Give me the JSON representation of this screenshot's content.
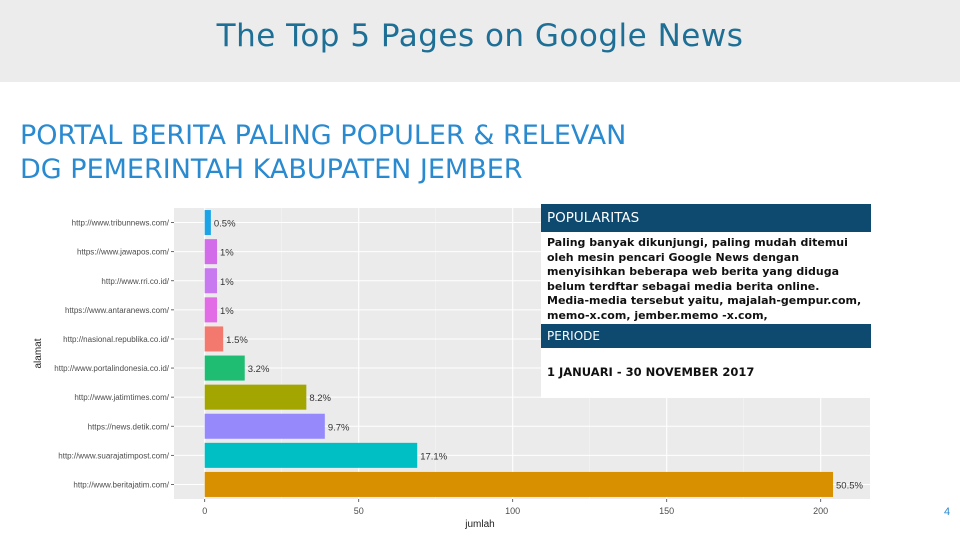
{
  "slide": {
    "title": "The Top 5 Pages on Google News",
    "heading_line1": "PORTAL BERITA PALING POPULER & RELEVAN",
    "heading_line2": "DG PEMERINTAH KABUPATEN JEMBER",
    "page_number": "4"
  },
  "popularitas": {
    "header": "POPULARITAS",
    "body": "Paling banyak dikunjungi, paling mudah ditemui oleh mesin pencari Google News dengan menyisihkan beberapa web berita yang diduga belum terdftar sebagai media berita online. Media-media tersebut yaitu, majalah-gempur.com, memo-x.com, jember.memo -x.com, faktajember.com"
  },
  "periode": {
    "header": "PERIODE",
    "value": "1 JANUARI -  30 NOVEMBER 2017"
  },
  "chart_data": {
    "type": "bar",
    "orientation": "horizontal",
    "xlabel": "jumlah",
    "ylabel": "alamat",
    "xlim": [
      0,
      215
    ],
    "x_ticks": [
      0,
      50,
      100,
      150,
      200
    ],
    "grid": true,
    "categories": [
      "http://www.tribunnews.com/",
      "https://www.jawapos.com/",
      "http://www.rri.co.id/",
      "https://www.antaranews.com/",
      "http://nasional.republika.co.id/",
      "http://www.portalindonesia.co.id/",
      "http://www.jatimtimes.com/",
      "https://news.detik.com/",
      "http://www.suarajatimpost.com/",
      "http://www.beritajatim.com/"
    ],
    "values": [
      2,
      4,
      4,
      4,
      6,
      13,
      33,
      39,
      69,
      204
    ],
    "labels": [
      "0.5%",
      "1%",
      "1%",
      "1%",
      "1.5%",
      "3.2%",
      "8.2%",
      "9.7%",
      "17.1%",
      "50.5%"
    ],
    "colors": [
      "#1aa3e6",
      "#d36ce8",
      "#c879f0",
      "#e26be6",
      "#f3786e",
      "#1fbd72",
      "#a3a500",
      "#9589fc",
      "#00bfc4",
      "#d89000"
    ]
  }
}
